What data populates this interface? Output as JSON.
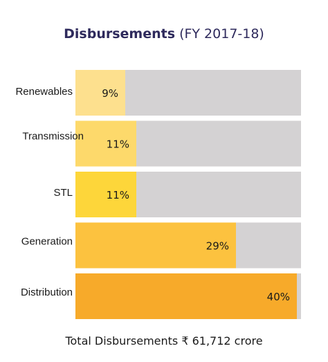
{
  "title": {
    "bold": "Disbursements",
    "light": "(FY 2017-18)"
  },
  "footer": {
    "text": "Total Disbursements ₹ 61,712 crore"
  },
  "chart_data": {
    "type": "bar",
    "orientation": "horizontal",
    "title": "Disbursements (FY 2017-18)",
    "categories": [
      "Renewables",
      "Transmission",
      "STL",
      "Generation",
      "Distribution"
    ],
    "values": [
      9,
      11,
      11,
      29,
      40
    ],
    "value_labels": [
      "9%",
      "11%",
      "11%",
      "29%",
      "40%"
    ],
    "unit": "%",
    "xlim": [
      0,
      40
    ],
    "track_color": "#d4d2d3",
    "bar_colors": [
      "#fde08e",
      "#fdd96b",
      "#fdd63a",
      "#fcc23f",
      "#f7aa2a"
    ],
    "grid": false,
    "legend": "none"
  }
}
